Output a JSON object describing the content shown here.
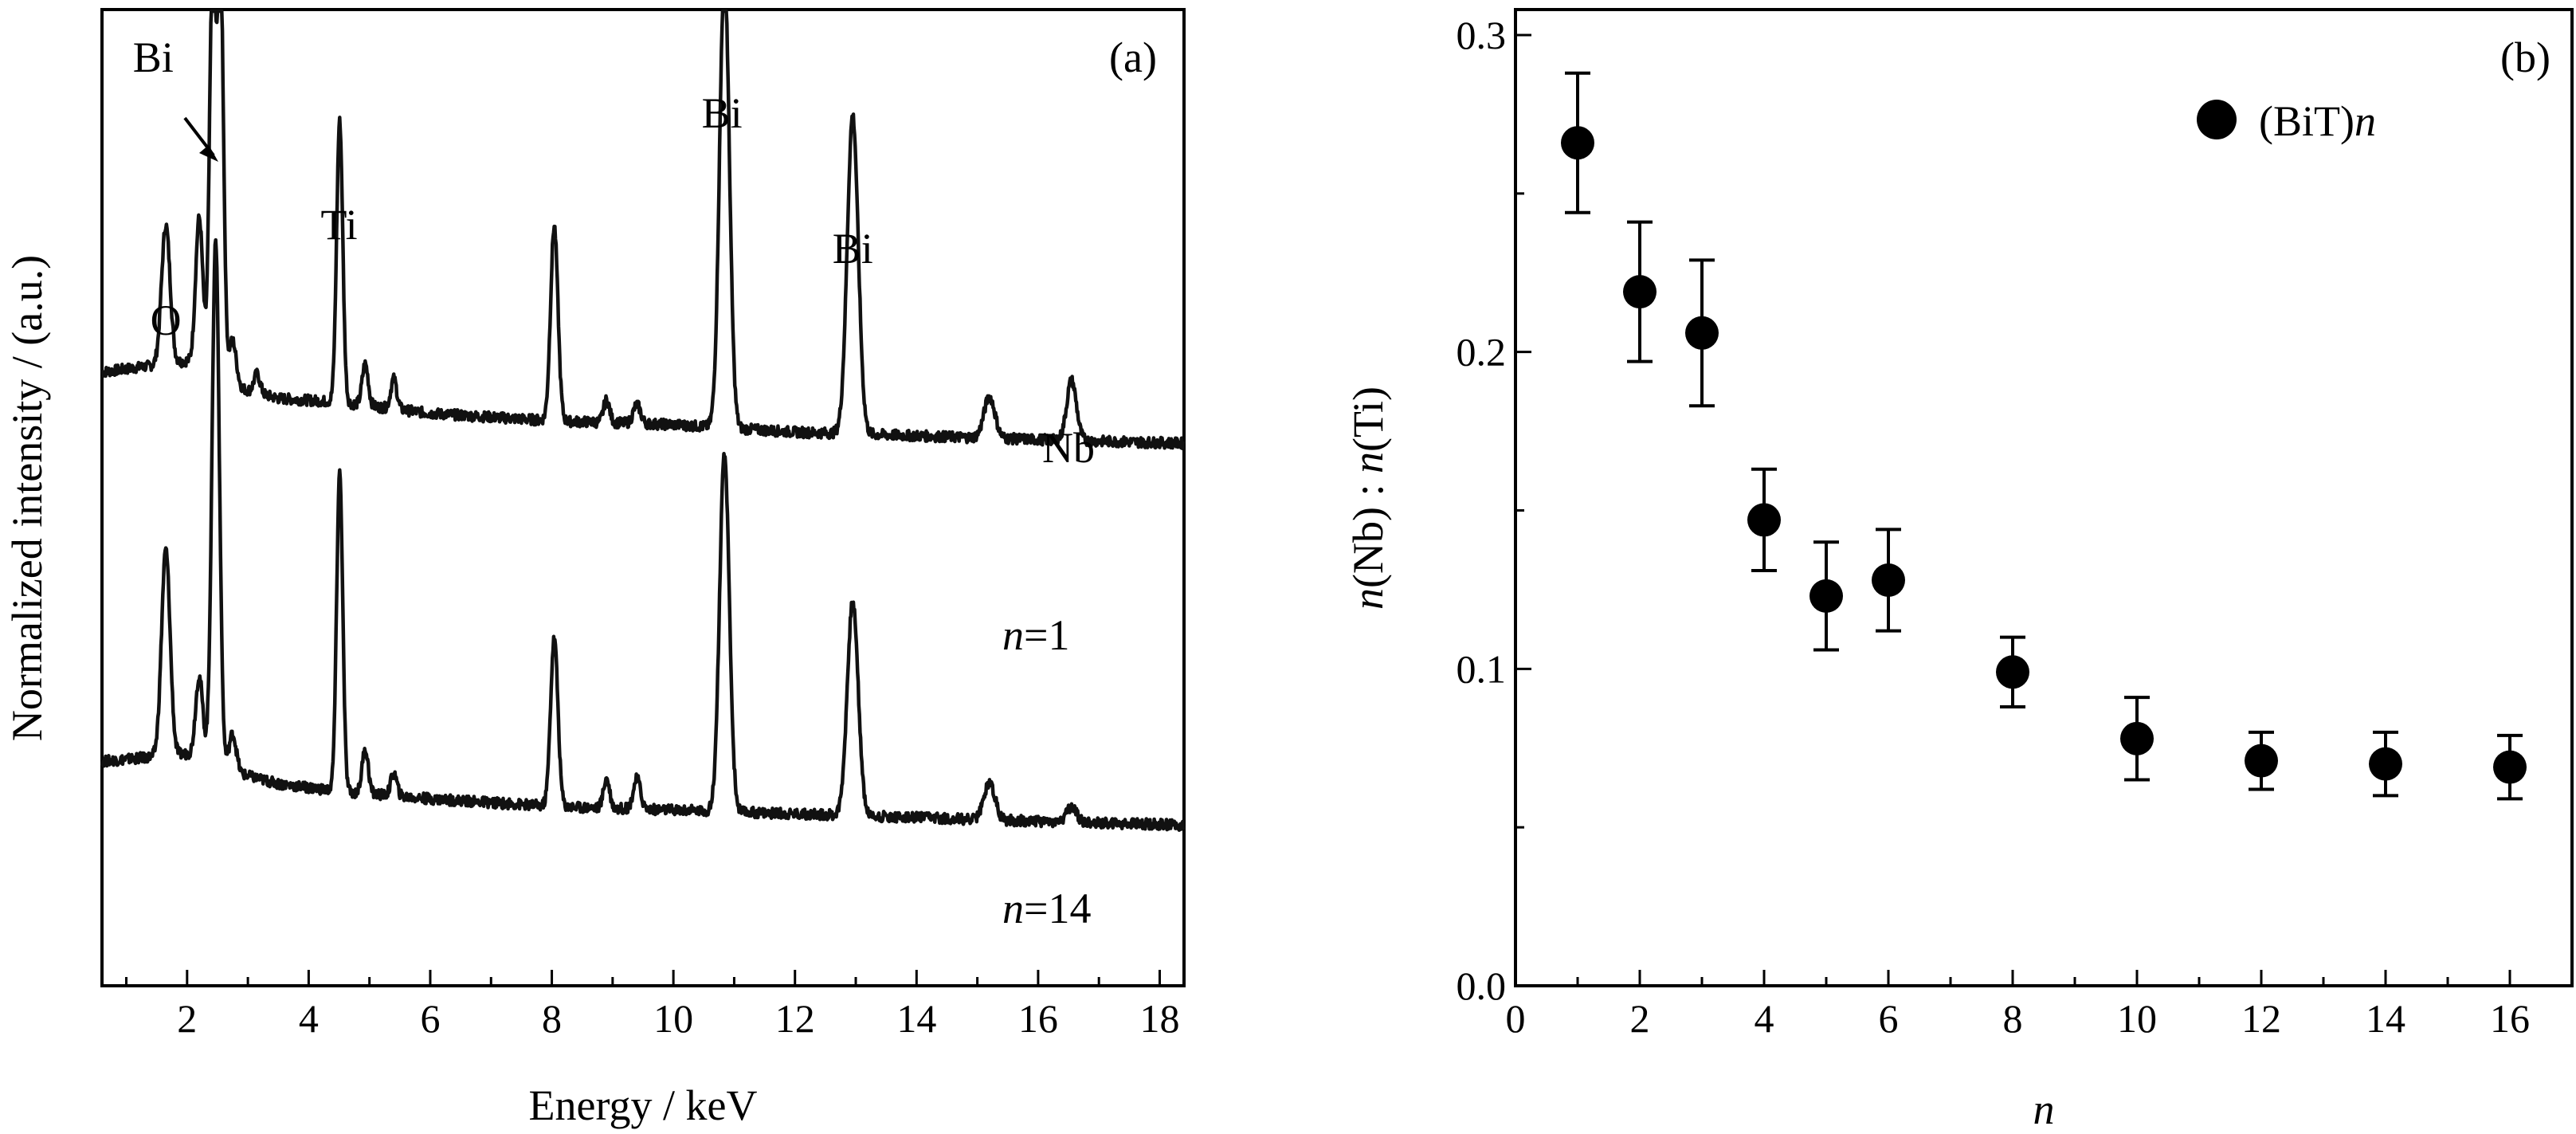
{
  "chart_data": [
    {
      "type": "line",
      "panel_label": "(a)",
      "xlabel": "Energy / keV",
      "ylabel": "Normalized intensity / (a.u.)",
      "xlim": [
        0.6,
        18.4
      ],
      "xticks": [
        "2",
        "4",
        "6",
        "8",
        "10",
        "12",
        "14",
        "16",
        "18"
      ],
      "peak_labels": [
        {
          "text": "O",
          "x": 1.65
        },
        {
          "text": "Bi",
          "x": 2.4
        },
        {
          "text": "Ti",
          "x": 4.5
        },
        {
          "text": "Bi",
          "x": 10.8
        },
        {
          "text": "Bi",
          "x": 12.95
        },
        {
          "text": "Nb",
          "x": 16.5
        }
      ],
      "series": [
        {
          "name_prefix": "n",
          "name_suffix": "=1",
          "baseline": [
            [
              0.6,
              0.4
            ],
            [
              2.0,
              0.43
            ],
            [
              2.8,
              0.36
            ],
            [
              3.5,
              0.33
            ],
            [
              4.5,
              0.32
            ],
            [
              6,
              0.29
            ],
            [
              8,
              0.27
            ],
            [
              10,
              0.26
            ],
            [
              12,
              0.24
            ],
            [
              14,
              0.23
            ],
            [
              16,
              0.22
            ],
            [
              18.4,
              0.21
            ]
          ],
          "peaks": [
            {
              "x": 1.65,
              "h": 0.37,
              "w": 0.07
            },
            {
              "x": 2.2,
              "h": 0.4,
              "w": 0.06
            },
            {
              "x": 2.42,
              "h": 1.1,
              "w": 0.05
            },
            {
              "x": 2.55,
              "h": 1.1,
              "w": 0.05
            },
            {
              "x": 2.75,
              "h": 0.12,
              "w": 0.06
            },
            {
              "x": 3.15,
              "h": 0.05,
              "w": 0.05
            },
            {
              "x": 4.51,
              "h": 0.75,
              "w": 0.05
            },
            {
              "x": 4.93,
              "h": 0.11,
              "w": 0.05
            },
            {
              "x": 5.4,
              "h": 0.08,
              "w": 0.05
            },
            {
              "x": 8.04,
              "h": 0.52,
              "w": 0.06
            },
            {
              "x": 8.9,
              "h": 0.06,
              "w": 0.05
            },
            {
              "x": 9.4,
              "h": 0.05,
              "w": 0.06
            },
            {
              "x": 10.84,
              "h": 1.22,
              "w": 0.08
            },
            {
              "x": 12.95,
              "h": 0.85,
              "w": 0.09
            },
            {
              "x": 15.2,
              "h": 0.11,
              "w": 0.09
            },
            {
              "x": 16.55,
              "h": 0.16,
              "w": 0.08
            }
          ]
        },
        {
          "name_prefix": "n",
          "name_suffix": "=14",
          "baseline": [
            [
              0.6,
              0.18
            ],
            [
              2.0,
              0.2
            ],
            [
              2.8,
              0.15
            ],
            [
              3.5,
              0.12
            ],
            [
              4.5,
              0.1
            ],
            [
              6,
              0.08
            ],
            [
              8,
              0.06
            ],
            [
              10,
              0.05
            ],
            [
              12,
              0.04
            ],
            [
              14,
              0.03
            ],
            [
              16,
              0.02
            ],
            [
              18.4,
              0.01
            ]
          ],
          "peaks": [
            {
              "x": 1.65,
              "h": 0.55,
              "w": 0.07
            },
            {
              "x": 2.2,
              "h": 0.22,
              "w": 0.06
            },
            {
              "x": 2.47,
              "h": 1.4,
              "w": 0.06
            },
            {
              "x": 2.75,
              "h": 0.1,
              "w": 0.06
            },
            {
              "x": 4.51,
              "h": 0.85,
              "w": 0.05
            },
            {
              "x": 4.93,
              "h": 0.12,
              "w": 0.05
            },
            {
              "x": 5.4,
              "h": 0.06,
              "w": 0.05
            },
            {
              "x": 8.04,
              "h": 0.45,
              "w": 0.06
            },
            {
              "x": 8.9,
              "h": 0.08,
              "w": 0.05
            },
            {
              "x": 9.4,
              "h": 0.08,
              "w": 0.06
            },
            {
              "x": 10.84,
              "h": 0.95,
              "w": 0.08
            },
            {
              "x": 12.95,
              "h": 0.57,
              "w": 0.09
            },
            {
              "x": 15.2,
              "h": 0.1,
              "w": 0.09
            },
            {
              "x": 16.55,
              "h": 0.04,
              "w": 0.08
            }
          ]
        }
      ]
    },
    {
      "type": "scatter",
      "panel_label": "(b)",
      "xlabel": "n",
      "ylabel_parts": [
        "n",
        "(Nb) : ",
        "n",
        "(Ti)"
      ],
      "xlim": [
        0,
        17
      ],
      "ylim": [
        0.0,
        0.3
      ],
      "xticks": [
        0,
        2,
        4,
        6,
        8,
        10,
        12,
        14,
        16
      ],
      "yticks": [
        0.0,
        0.1,
        0.2,
        0.3
      ],
      "ytick_labels": [
        "0.0",
        "0.1",
        "0.2",
        "0.3"
      ],
      "legend": {
        "label": "(BiT)",
        "label_italic": "n",
        "position": "top-right"
      },
      "points": [
        {
          "x": 1,
          "y": 0.266,
          "err": 0.022
        },
        {
          "x": 2,
          "y": 0.219,
          "err": 0.022
        },
        {
          "x": 3,
          "y": 0.206,
          "err": 0.023
        },
        {
          "x": 4,
          "y": 0.147,
          "err": 0.016
        },
        {
          "x": 5,
          "y": 0.123,
          "err": 0.017
        },
        {
          "x": 6,
          "y": 0.128,
          "err": 0.016
        },
        {
          "x": 8,
          "y": 0.099,
          "err": 0.011
        },
        {
          "x": 10,
          "y": 0.078,
          "err": 0.013
        },
        {
          "x": 12,
          "y": 0.071,
          "err": 0.009
        },
        {
          "x": 14,
          "y": 0.07,
          "err": 0.01
        },
        {
          "x": 16,
          "y": 0.069,
          "err": 0.01
        }
      ]
    }
  ]
}
